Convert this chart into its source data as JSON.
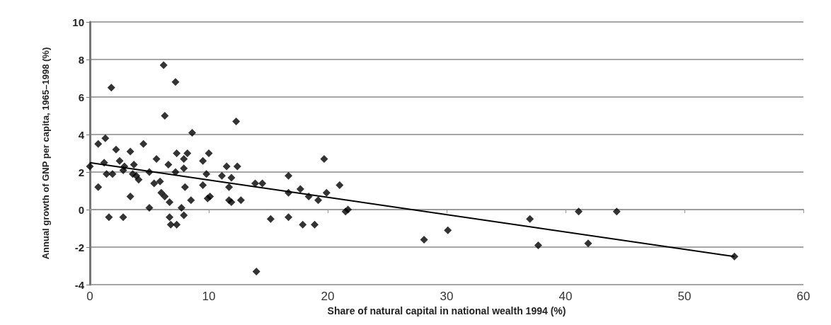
{
  "chart_data": {
    "type": "scatter",
    "xlabel": "Share of natural capital in national wealth 1994 (%)",
    "ylabel": "Annual growth of GNP per capita, 1965–1998 (%)",
    "xlim": [
      0,
      60
    ],
    "xticks": [
      0,
      10,
      20,
      30,
      40,
      50,
      60
    ],
    "ylim": [
      -4,
      10
    ],
    "yticks": [
      -4,
      -2,
      0,
      2,
      4,
      6,
      8,
      10
    ],
    "grid": "y",
    "marker": "diamond",
    "series": [
      {
        "color": "#000000",
        "x": [
          0,
          0.7,
          0.7,
          1.3,
          1.2,
          1.4,
          1.9,
          1.6,
          1.8,
          2.2,
          2.5,
          2.8,
          2.9,
          2.8,
          3.4,
          3.7,
          3.4,
          3.6,
          3.9,
          4.1,
          4.5,
          5.0,
          5.0,
          5.6,
          5.4,
          5.9,
          6.0,
          6.3,
          6.7,
          6.2,
          6.3,
          6.6,
          7.2,
          7.2,
          6.7,
          6.8,
          7.3,
          7.3,
          7.9,
          7.9,
          8.2,
          8.0,
          7.7,
          7.9,
          8.5,
          8.6,
          9.5,
          10.0,
          9.8,
          9.5,
          9.9,
          10.1,
          11.1,
          11.5,
          11.9,
          11.7,
          11.7,
          11.9,
          12.4,
          12.3,
          12.7,
          13.9,
          14.5,
          14.0,
          15.2,
          16.7,
          16.7,
          16.7,
          17.7,
          17.9,
          18.4,
          19.2,
          19.7,
          19.9,
          21.0,
          21.5,
          21.7,
          18.9,
          28.1,
          30.1,
          37.0,
          37.7,
          41.1,
          44.3,
          41.9,
          54.2
        ],
        "values": [
          2.3,
          3.5,
          1.2,
          3.8,
          2.5,
          1.9,
          1.9,
          -0.4,
          6.5,
          3.2,
          2.6,
          2.1,
          2.3,
          -0.4,
          3.1,
          2.4,
          0.7,
          1.9,
          1.8,
          1.6,
          3.5,
          2.0,
          0.1,
          2.7,
          1.4,
          1.5,
          0.9,
          0.7,
          0.4,
          7.7,
          5.0,
          2.4,
          2.0,
          6.8,
          -0.4,
          -0.8,
          -0.8,
          3.0,
          2.7,
          2.2,
          3.0,
          1.2,
          0.1,
          -0.3,
          0.5,
          4.1,
          2.6,
          3.0,
          1.9,
          1.3,
          0.6,
          0.7,
          1.8,
          2.3,
          1.7,
          1.2,
          0.5,
          0.4,
          2.3,
          4.7,
          0.5,
          1.4,
          1.4,
          -3.3,
          -0.5,
          1.8,
          0.9,
          -0.4,
          1.1,
          -0.8,
          0.7,
          0.5,
          2.7,
          0.9,
          1.3,
          -0.1,
          0.0,
          -0.8,
          -1.6,
          -1.1,
          -0.5,
          -1.9,
          -0.1,
          -0.1,
          -1.8,
          -2.5
        ]
      },
      {
        "type": "line",
        "color": "#000000",
        "marker": "none",
        "line_style": "solid",
        "x": [
          0,
          54.2
        ],
        "values": [
          2.5,
          -2.5
        ]
      }
    ]
  }
}
